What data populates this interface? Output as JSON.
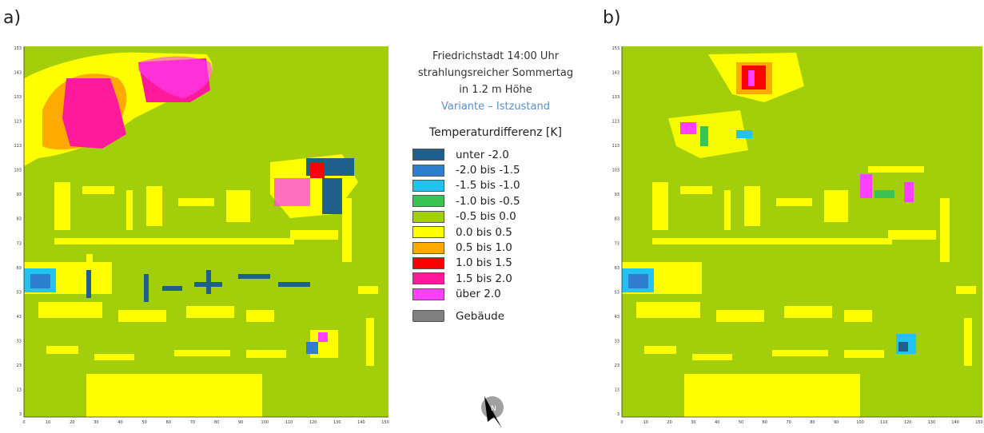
{
  "panels": {
    "a": {
      "label": "a)"
    },
    "b": {
      "label": "b)"
    }
  },
  "legend": {
    "title_lines": [
      "Friedrichstadt 14:00 Uhr",
      "strahlungsreicher Sommertag",
      "in 1.2 m Höhe"
    ],
    "variant_line": "Variante – Istzustand",
    "header": "Temperaturdifferenz [K]",
    "classes": [
      {
        "label": "unter -2.0",
        "color": "#1f5f8b"
      },
      {
        "label": "-2.0  bis -1.5",
        "color": "#2e7fcf"
      },
      {
        "label": "-1.5  bis -1.0",
        "color": "#21c4f0"
      },
      {
        "label": "-1.0  bis -0.5",
        "color": "#3bc353"
      },
      {
        "label": "-0.5  bis 0.0",
        "color": "#a3cf0a"
      },
      {
        "label": "0.0  bis 0.5",
        "color": "#ffff00"
      },
      {
        "label": "0.5  bis 1.0",
        "color": "#ffaa00"
      },
      {
        "label": "1.0  bis 1.5",
        "color": "#ff0000"
      },
      {
        "label": "1.5 bis 2.0",
        "color": "#ff1a9c"
      },
      {
        "label": "über 2.0",
        "color": "#ff40ff"
      }
    ],
    "building_label": "Gebäude",
    "building_color": "#808080"
  },
  "axes": {
    "x_ticks": [
      "0",
      "10",
      "20",
      "30",
      "40",
      "50",
      "60",
      "70",
      "80",
      "90",
      "100",
      "110",
      "120",
      "130",
      "140",
      "150"
    ],
    "y_ticks": [
      "3",
      "13",
      "23",
      "33",
      "43",
      "53",
      "63",
      "73",
      "83",
      "93",
      "103",
      "113",
      "123",
      "133",
      "143",
      "153"
    ]
  },
  "compass": {
    "icon": "north-arrow-icon"
  }
}
